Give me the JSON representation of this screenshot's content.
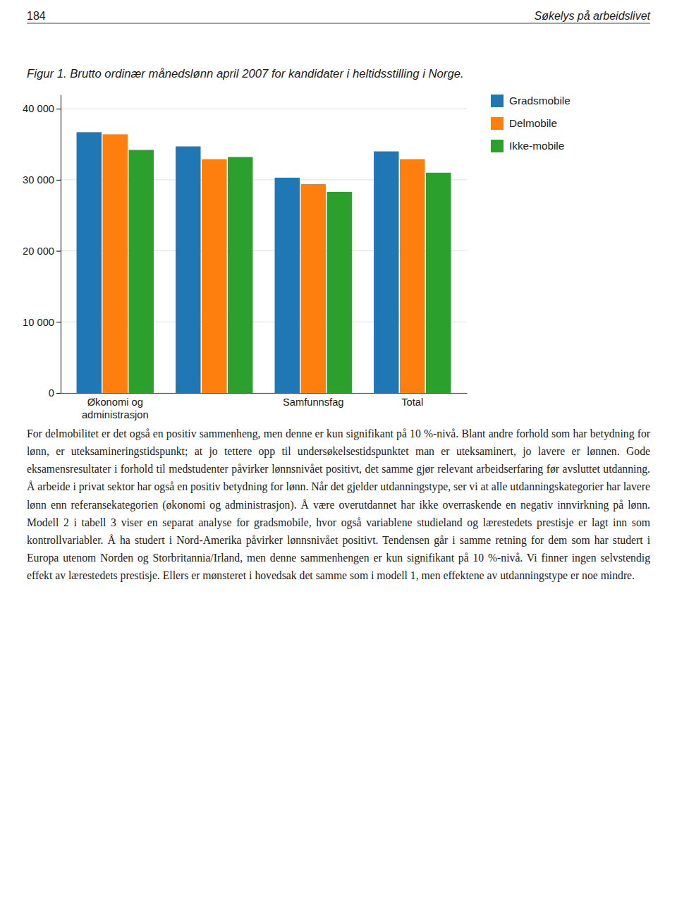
{
  "chart_data": {
    "type": "bar",
    "title": "Figur 1. Brutto ordinær månedslønn april 2007 for kandidater i heltidsstilling i Norge.",
    "annotations": [
      "184",
      "Søkelys på arbeidslivet",
      "For delmobilitet er det også en positiv sammenheng, men denne er kun signi­fikant på 10 %-nivå. Blant andre forhold som har betydning for lønn, er uteksa­mineringstidspunkt; at jo tettere opp til undersøkelsestidspunktet man er uteksa­minert, jo lavere er lønnen. Gode eksamensresultater i forhold til medstudenter påvirker lønnsnivået positivt, det samme gjør relevant arbeidserfaring før avsluttet utdanning. Å arbeide i privat sektor har også en positiv betydning for lønn. Når det gjelder utdanningstype, ser vi at alle utdanningskategorier har lavere lønn enn referansekategorien (økonomi og administrasjon). Å være overutdannet har ikke overraskende en negativ innvirkning på lønn. Modell 2 i tabell 3 viser en separat analyse for gradsmobile, hvor også variablene studieland og lærestedets prestisje er lagt inn som kontrollvariabler. Å ha studert i Nord-Amerika påvirker lønnsnivået positivt. Tendensen går i samme retning for dem som har studert i Europa utenom Norden og Storbritannia/Irland, men denne sammenhengen er kun signifikant på 10 %-nivå. Vi finner ingen selvstendig effekt av lærestedets prestisje. Ellers er møn­steret i hovedsak det samme som i modell 1, men effektene av utdanningstype er noe mindre."
    ],
    "categories": [
      "Økonomi og\nadministrasjon",
      null,
      "Samfunnsfag",
      "Total"
    ],
    "series": [
      {
        "name": "Gradsmobile",
        "values": [
          36700,
          34700,
          30300,
          34000
        ]
      },
      {
        "name": "Delmobile",
        "values": [
          36400,
          32900,
          29400,
          32900
        ]
      },
      {
        "name": "Ikke-mobile",
        "values": [
          34200,
          33200,
          28300,
          31000
        ]
      }
    ],
    "ylim": [
      0,
      42000
    ],
    "yticks": [
      0,
      {
        "value": 10000,
        "label": "10 000"
      },
      {
        "value": 20000,
        "label": "20 000"
      },
      {
        "value": 30000,
        "label": "30 000"
      },
      {
        "value": 40000,
        "label": "40 000"
      }
    ],
    "grid": true,
    "legend": "right"
  }
}
